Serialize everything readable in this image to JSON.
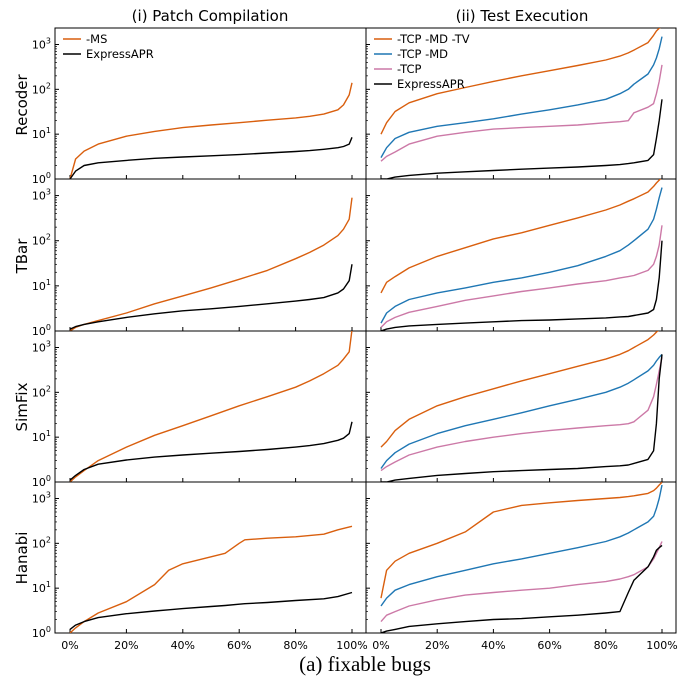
{
  "column_titles": [
    "(i) Patch Compilation",
    "(ii) Test Execution"
  ],
  "row_labels": [
    "Recoder",
    "TBar",
    "SimFix",
    "Hanabi"
  ],
  "caption": "(a) fixable bugs",
  "y_tick_labels": [
    "10^0",
    "10^1",
    "10^2",
    "10^3"
  ],
  "x_tick_labels": [
    "0%",
    "20%",
    "40%",
    "60%",
    "80%",
    "100%"
  ],
  "colors": {
    "-MS": "#d95f0e",
    "-TCP -MD -TV": "#d95f0e",
    "-TCP -MD": "#1f77b4",
    "-TCP": "#cc79a7",
    "ExpressAPR": "#000000"
  },
  "chart_data": [
    {
      "type": "line",
      "panel": "Recoder / (i) Patch Compilation",
      "title": "(i) Patch Compilation",
      "ylabel": "Recoder",
      "x": [
        0,
        2,
        5,
        10,
        20,
        30,
        40,
        50,
        60,
        70,
        80,
        85,
        90,
        95,
        97,
        99,
        100
      ],
      "yscale": "log",
      "ylim": [
        1,
        2000
      ],
      "xlim": [
        0,
        100
      ],
      "legend": "top-left",
      "series": [
        {
          "name": "-MS",
          "values": [
            1,
            2.8,
            4.2,
            6,
            9,
            11.5,
            14,
            16,
            18,
            20.5,
            23,
            25,
            28,
            35,
            45,
            75,
            140
          ]
        },
        {
          "name": "ExpressAPR",
          "values": [
            1,
            1.5,
            2,
            2.3,
            2.6,
            2.9,
            3.1,
            3.3,
            3.5,
            3.8,
            4.1,
            4.3,
            4.6,
            5,
            5.3,
            6,
            8.5
          ]
        }
      ]
    },
    {
      "type": "line",
      "panel": "Recoder / (ii) Test Execution",
      "title": "(ii) Test Execution",
      "ylabel": "",
      "x": [
        0,
        2,
        5,
        10,
        20,
        30,
        40,
        50,
        60,
        70,
        80,
        85,
        88,
        90,
        95,
        97,
        98,
        99,
        100
      ],
      "yscale": "log",
      "ylim": [
        1,
        2000
      ],
      "xlim": [
        0,
        100
      ],
      "legend": "top-left",
      "series": [
        {
          "name": "-TCP -MD -TV",
          "values": [
            10,
            18,
            32,
            50,
            80,
            110,
            150,
            200,
            260,
            340,
            450,
            550,
            650,
            750,
            1100,
            1600,
            2000,
            2300,
            2600
          ]
        },
        {
          "name": "-TCP -MD",
          "values": [
            3,
            5,
            8,
            11,
            15,
            18,
            22,
            28,
            35,
            45,
            60,
            80,
            100,
            130,
            220,
            350,
            500,
            800,
            1500
          ]
        },
        {
          "name": "-TCP",
          "values": [
            2.5,
            3.2,
            4,
            6,
            9,
            11,
            13,
            14,
            15,
            16,
            18,
            19,
            20,
            30,
            40,
            48,
            80,
            150,
            350
          ]
        },
        {
          "name": "ExpressAPR",
          "values": [
            1,
            1,
            1.1,
            1.2,
            1.35,
            1.45,
            1.55,
            1.65,
            1.75,
            1.85,
            2,
            2.1,
            2.2,
            2.3,
            2.6,
            3.5,
            8,
            20,
            60
          ]
        }
      ]
    },
    {
      "type": "line",
      "panel": "TBar / (i) Patch Compilation",
      "ylabel": "TBar",
      "x": [
        0,
        2,
        5,
        10,
        20,
        30,
        40,
        50,
        60,
        70,
        80,
        85,
        90,
        95,
        97,
        99,
        100
      ],
      "yscale": "log",
      "ylim": [
        1,
        2000
      ],
      "xlim": [
        0,
        100
      ],
      "series": [
        {
          "name": "-MS",
          "values": [
            1,
            1.2,
            1.4,
            1.7,
            2.5,
            4,
            6,
            9,
            14,
            22,
            40,
            55,
            80,
            130,
            180,
            300,
            900
          ]
        },
        {
          "name": "ExpressAPR",
          "values": [
            1.1,
            1.25,
            1.4,
            1.6,
            2,
            2.4,
            2.8,
            3.1,
            3.5,
            4,
            4.6,
            5,
            5.5,
            7,
            8.5,
            13,
            30
          ]
        }
      ]
    },
    {
      "type": "line",
      "panel": "TBar / (ii) Test Execution",
      "ylabel": "",
      "x": [
        0,
        2,
        5,
        10,
        20,
        30,
        40,
        50,
        60,
        70,
        80,
        85,
        88,
        90,
        95,
        97,
        98,
        99,
        100
      ],
      "yscale": "log",
      "ylim": [
        1,
        2000
      ],
      "xlim": [
        0,
        100
      ],
      "series": [
        {
          "name": "-TCP -MD -TV",
          "values": [
            7,
            12,
            16,
            25,
            45,
            70,
            110,
            150,
            220,
            320,
            480,
            620,
            750,
            850,
            1200,
            1600,
            1900,
            2200,
            2500
          ]
        },
        {
          "name": "-TCP -MD",
          "values": [
            1.5,
            2.5,
            3.5,
            5,
            7,
            9,
            12,
            15,
            20,
            28,
            45,
            60,
            80,
            100,
            180,
            300,
            500,
            900,
            1500
          ]
        },
        {
          "name": "-TCP",
          "values": [
            1.2,
            1.6,
            2,
            2.6,
            3.5,
            4.8,
            6,
            7.5,
            9,
            11,
            13,
            15,
            16,
            17,
            22,
            30,
            45,
            80,
            220
          ]
        },
        {
          "name": "ExpressAPR",
          "values": [
            1,
            1.1,
            1.2,
            1.3,
            1.4,
            1.5,
            1.6,
            1.7,
            1.75,
            1.85,
            1.95,
            2.05,
            2.1,
            2.2,
            2.5,
            3,
            5,
            15,
            100
          ]
        }
      ]
    },
    {
      "type": "line",
      "panel": "SimFix / (i) Patch Compilation",
      "ylabel": "SimFix",
      "x": [
        0,
        2,
        5,
        10,
        20,
        30,
        40,
        50,
        60,
        70,
        80,
        85,
        90,
        95,
        97,
        99,
        100
      ],
      "yscale": "log",
      "ylim": [
        1,
        2000
      ],
      "xlim": [
        0,
        100
      ],
      "series": [
        {
          "name": "-MS",
          "values": [
            1,
            1.3,
            1.8,
            3,
            6,
            11,
            18,
            30,
            50,
            80,
            130,
            180,
            260,
            400,
            550,
            800,
            2500
          ]
        },
        {
          "name": "ExpressAPR",
          "values": [
            1.1,
            1.4,
            1.9,
            2.5,
            3.1,
            3.6,
            4,
            4.4,
            4.8,
            5.3,
            6,
            6.5,
            7.2,
            8.5,
            9.5,
            12,
            22
          ]
        }
      ]
    },
    {
      "type": "line",
      "panel": "SimFix / (ii) Test Execution",
      "ylabel": "",
      "x": [
        0,
        2,
        5,
        10,
        20,
        30,
        40,
        50,
        60,
        70,
        80,
        85,
        88,
        90,
        95,
        97,
        98,
        99,
        100
      ],
      "yscale": "log",
      "ylim": [
        1,
        2000
      ],
      "xlim": [
        0,
        100
      ],
      "series": [
        {
          "name": "-TCP -MD -TV",
          "values": [
            6,
            8,
            14,
            25,
            50,
            80,
            120,
            180,
            260,
            380,
            550,
            700,
            850,
            1000,
            1500,
            1900,
            2200,
            2500,
            2800
          ]
        },
        {
          "name": "-TCP -MD",
          "values": [
            2,
            3,
            4.5,
            7,
            12,
            18,
            25,
            35,
            50,
            70,
            100,
            130,
            160,
            190,
            300,
            400,
            500,
            600,
            700
          ]
        },
        {
          "name": "-TCP",
          "values": [
            1.8,
            2.2,
            2.8,
            4,
            6,
            8,
            10,
            12,
            14,
            16,
            18,
            19,
            20,
            22,
            40,
            80,
            150,
            300,
            600
          ]
        },
        {
          "name": "ExpressAPR",
          "values": [
            1,
            1,
            1.1,
            1.2,
            1.4,
            1.55,
            1.7,
            1.8,
            1.9,
            2,
            2.2,
            2.3,
            2.4,
            2.6,
            3.2,
            5,
            20,
            200,
            700
          ]
        }
      ]
    },
    {
      "type": "line",
      "panel": "Hanabi / (i) Patch Compilation",
      "ylabel": "Hanabi",
      "x": [
        0,
        2,
        5,
        10,
        20,
        30,
        35,
        40,
        50,
        55,
        60,
        62,
        70,
        80,
        90,
        95,
        100
      ],
      "yscale": "log",
      "ylim": [
        1,
        2000
      ],
      "xlim": [
        0,
        100
      ],
      "series": [
        {
          "name": "-MS",
          "values": [
            1,
            1.3,
            1.8,
            2.8,
            5,
            12,
            25,
            35,
            50,
            60,
            100,
            120,
            130,
            140,
            160,
            200,
            240
          ]
        },
        {
          "name": "ExpressAPR",
          "values": [
            1.2,
            1.5,
            1.8,
            2.2,
            2.7,
            3.1,
            3.3,
            3.5,
            3.9,
            4.1,
            4.4,
            4.5,
            4.8,
            5.3,
            5.8,
            6.5,
            8
          ]
        }
      ]
    },
    {
      "type": "line",
      "panel": "Hanabi / (ii) Test Execution",
      "ylabel": "",
      "x": [
        0,
        2,
        5,
        10,
        20,
        30,
        40,
        50,
        60,
        70,
        80,
        85,
        88,
        90,
        95,
        97,
        98,
        99,
        100
      ],
      "yscale": "log",
      "ylim": [
        1,
        2000
      ],
      "xlim": [
        0,
        100
      ],
      "series": [
        {
          "name": "-TCP -MD -TV",
          "values": [
            6,
            25,
            40,
            60,
            100,
            180,
            500,
            700,
            800,
            900,
            1000,
            1050,
            1100,
            1150,
            1300,
            1500,
            1700,
            2000,
            2300
          ]
        },
        {
          "name": "-TCP -MD",
          "values": [
            4,
            6,
            9,
            12,
            18,
            25,
            35,
            45,
            60,
            80,
            110,
            140,
            170,
            200,
            300,
            400,
            600,
            1000,
            2000
          ]
        },
        {
          "name": "-TCP",
          "values": [
            1.8,
            2.5,
            3,
            4,
            5.5,
            7,
            8,
            9,
            10,
            12,
            14,
            16,
            18,
            20,
            30,
            45,
            60,
            80,
            110
          ]
        },
        {
          "name": "ExpressAPR",
          "values": [
            1,
            1.1,
            1.2,
            1.4,
            1.6,
            1.8,
            2,
            2.1,
            2.3,
            2.5,
            2.8,
            3,
            8,
            15,
            30,
            50,
            70,
            80,
            90
          ]
        }
      ]
    }
  ]
}
